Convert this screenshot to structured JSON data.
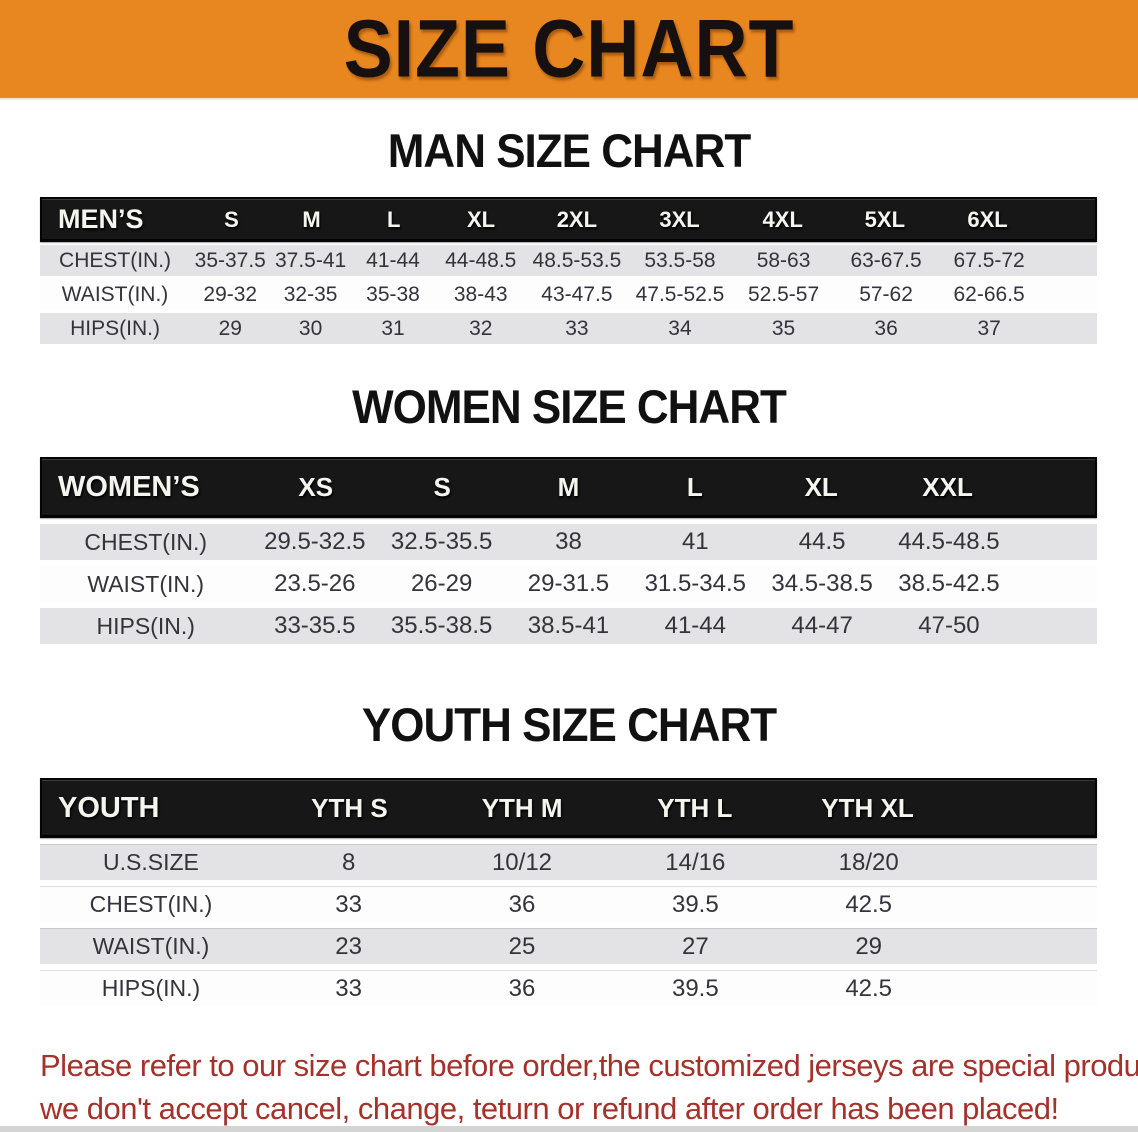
{
  "banner": {
    "title": "SIZE CHART",
    "bg_color": "#E8861F",
    "text_color": "#161010"
  },
  "sections": [
    {
      "id": "men",
      "heading": "MAN SIZE CHART",
      "table": {
        "header_label": "MEN’S",
        "columns": [
          "S",
          "M",
          "L",
          "XL",
          "2XL",
          "3XL",
          "4XL",
          "5XL",
          "6XL"
        ],
        "rows": [
          {
            "label": "CHEST(IN.)",
            "values": [
              "35-37.5",
              "37.5-41",
              "41-44",
              "44-48.5",
              "48.5-53.5",
              "53.5-58",
              "58-63",
              "63-67.5",
              "67.5-72"
            ]
          },
          {
            "label": "WAIST(IN.)",
            "values": [
              "29-32",
              "32-35",
              "35-38",
              "38-43",
              "43-47.5",
              "47.5-52.5",
              "52.5-57",
              "57-62",
              "62-66.5"
            ]
          },
          {
            "label": "HIPS(IN.)",
            "values": [
              "29",
              "30",
              "31",
              "32",
              "33",
              "34",
              "35",
              "36",
              "37"
            ]
          }
        ]
      }
    },
    {
      "id": "women",
      "heading": "WOMEN SIZE CHART",
      "table": {
        "header_label": "WOMEN’S",
        "columns": [
          "XS",
          "S",
          "M",
          "L",
          "XL",
          "XXL"
        ],
        "rows": [
          {
            "label": "CHEST(IN.)",
            "values": [
              "29.5-32.5",
              "32.5-35.5",
              "38",
              "41",
              "44.5",
              "44.5-48.5"
            ]
          },
          {
            "label": "WAIST(IN.)",
            "values": [
              "23.5-26",
              "26-29",
              "29-31.5",
              "31.5-34.5",
              "34.5-38.5",
              "38.5-42.5"
            ]
          },
          {
            "label": "HIPS(IN.)",
            "values": [
              "33-35.5",
              "35.5-38.5",
              "38.5-41",
              "41-44",
              "44-47",
              "47-50"
            ]
          }
        ]
      }
    },
    {
      "id": "youth",
      "heading": "YOUTH SIZE CHART",
      "table": {
        "header_label": "YOUTH",
        "columns": [
          "YTH S",
          "YTH M",
          "YTH L",
          "YTH XL"
        ],
        "rows": [
          {
            "label": "U.S.SIZE",
            "values": [
              "8",
              "10/12",
              "14/16",
              "18/20"
            ]
          },
          {
            "label": "CHEST(IN.)",
            "values": [
              "33",
              "36",
              "39.5",
              "42.5"
            ]
          },
          {
            "label": "WAIST(IN.)",
            "values": [
              "23",
              "25",
              "27",
              "29"
            ]
          },
          {
            "label": "HIPS(IN.)",
            "values": [
              "33",
              "36",
              "39.5",
              "42.5"
            ]
          }
        ]
      }
    }
  ],
  "note": {
    "line1": "Please refer to our size chart before order,the customized jerseys are special products,",
    "line2": "we don't accept cancel, change, teturn or refund after order has been placed!",
    "color": "#A5312B"
  },
  "colors": {
    "table_header_bg": "#171717",
    "table_header_text": "#F5F5F0",
    "row_shade": "#E3E3E5",
    "row_plain": "#FDFDFD"
  }
}
